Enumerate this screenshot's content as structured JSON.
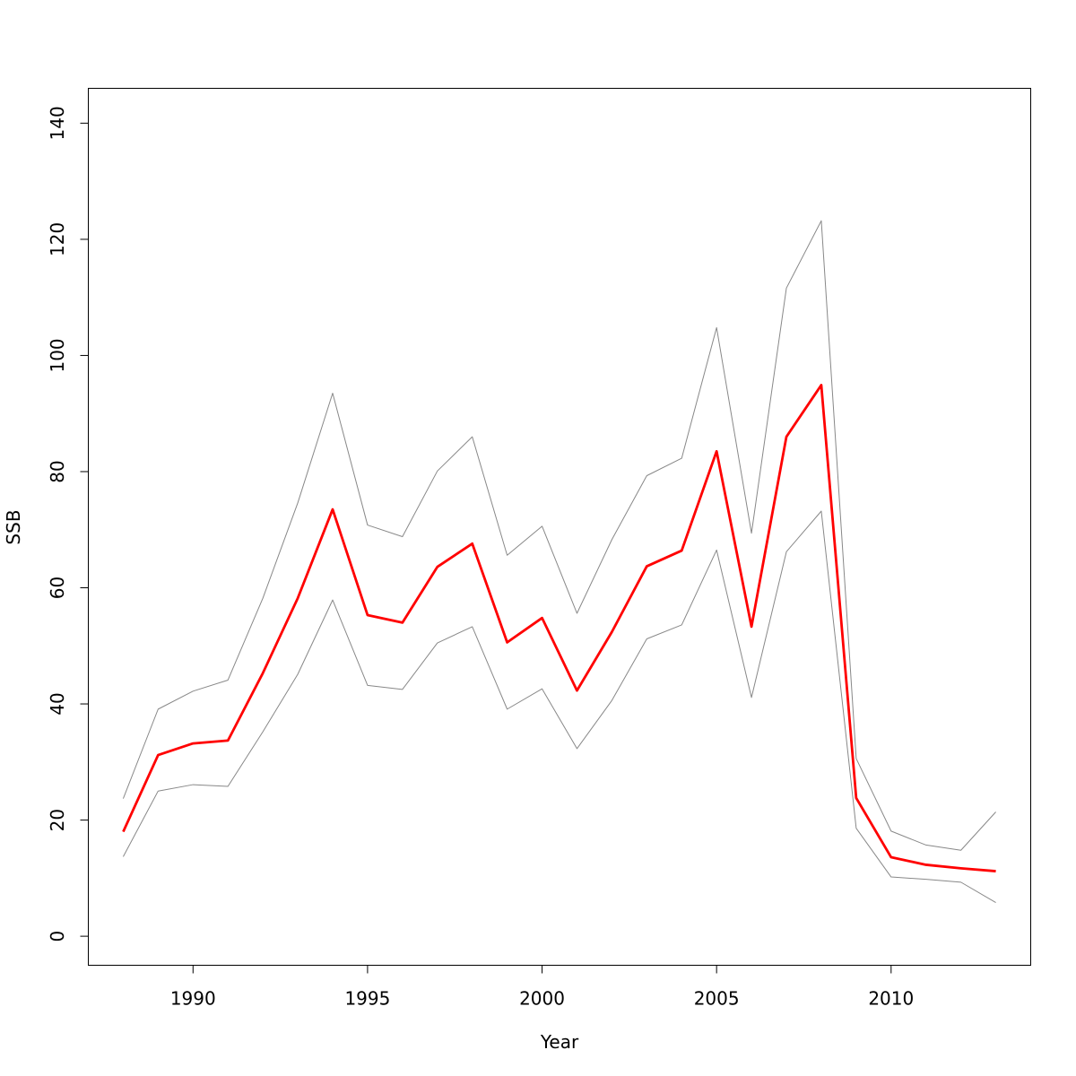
{
  "chart_data": {
    "type": "line",
    "title": "",
    "xlabel": "Year",
    "ylabel": "SSB",
    "xlim": [
      1987,
      2014
    ],
    "ylim": [
      -5,
      146
    ],
    "x_ticks": [
      1990,
      1995,
      2000,
      2005,
      2010
    ],
    "y_ticks": [
      0,
      20,
      40,
      60,
      80,
      100,
      120,
      140
    ],
    "grid": false,
    "legend": "none",
    "x": [
      1988,
      1989,
      1990,
      1991,
      1992,
      1993,
      1994,
      1995,
      1996,
      1997,
      1998,
      1999,
      2000,
      2001,
      2002,
      2003,
      2004,
      2005,
      2006,
      2007,
      2008,
      2009,
      2010,
      2011,
      2012,
      2013
    ],
    "series": [
      {
        "role": "estimate",
        "color": "#ff0000",
        "values": [
          18.0,
          31.2,
          33.2,
          33.7,
          45.3,
          58.2,
          73.5,
          55.3,
          54.0,
          63.6,
          67.6,
          50.6,
          54.8,
          42.3,
          52.4,
          63.7,
          66.4,
          83.5,
          53.3,
          86.0,
          94.9,
          23.8,
          13.6,
          12.3,
          11.7,
          11.2
        ]
      },
      {
        "role": "upper",
        "color": "#888888",
        "values": [
          23.7,
          39.1,
          42.2,
          44.1,
          58.2,
          74.6,
          93.5,
          70.8,
          68.8,
          80.1,
          86.0,
          65.6,
          70.6,
          55.6,
          68.3,
          79.3,
          82.3,
          104.8,
          69.4,
          111.6,
          123.2,
          30.6,
          18.1,
          15.7,
          14.8,
          21.4
        ]
      },
      {
        "role": "lower",
        "color": "#888888",
        "values": [
          13.7,
          25.0,
          26.1,
          25.8,
          35.2,
          45.1,
          57.9,
          43.2,
          42.5,
          50.5,
          53.3,
          39.1,
          42.6,
          32.3,
          40.6,
          51.2,
          53.6,
          66.5,
          41.1,
          66.2,
          73.2,
          18.6,
          10.2,
          9.8,
          9.3,
          5.8
        ]
      }
    ]
  }
}
